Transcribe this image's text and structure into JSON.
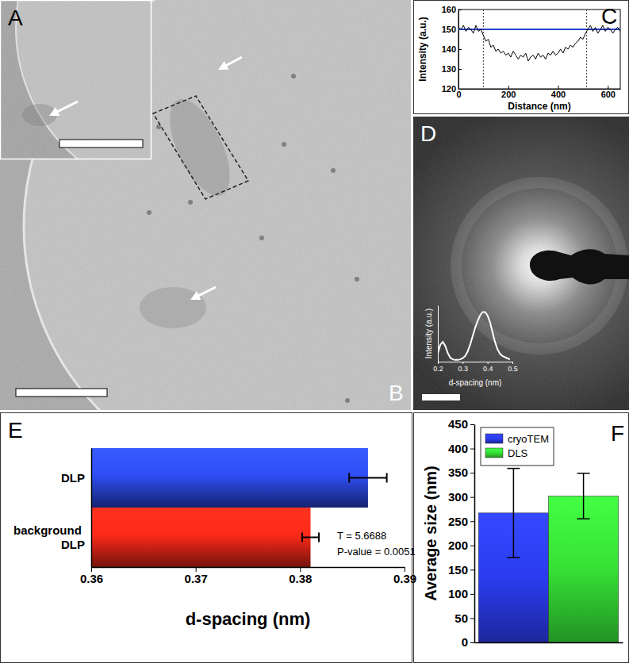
{
  "panels": [
    "A",
    "B",
    "C",
    "D",
    "E",
    "F"
  ],
  "chart_data": [
    {
      "type": "line",
      "xlabel": "Distance (nm)",
      "ylabel": "Intensity (a.u.)",
      "x": [
        0,
        10,
        20,
        30,
        40,
        50,
        60,
        70,
        80,
        90,
        100,
        110,
        120,
        130,
        140,
        150,
        160,
        170,
        180,
        190,
        200,
        210,
        220,
        230,
        240,
        250,
        260,
        270,
        280,
        290,
        300,
        310,
        320,
        330,
        340,
        350,
        360,
        370,
        380,
        390,
        400,
        410,
        420,
        430,
        440,
        450,
        460,
        470,
        480,
        490,
        500,
        510,
        520,
        530,
        540,
        550,
        560,
        570,
        580,
        590,
        600,
        610,
        620,
        630,
        640,
        650
      ],
      "series": [
        {
          "color": "#000000",
          "values": [
            151,
            150,
            152,
            149,
            151,
            150,
            148,
            152,
            149,
            150,
            147,
            144,
            145,
            141,
            142,
            139,
            140,
            138,
            139,
            137,
            138,
            136,
            139,
            137,
            135,
            137,
            136,
            138,
            134,
            136,
            137,
            135,
            138,
            136,
            137,
            135,
            138,
            137,
            139,
            137,
            138,
            140,
            138,
            141,
            140,
            142,
            141,
            143,
            144,
            146,
            145,
            148,
            150,
            152,
            149,
            151,
            148,
            150,
            152,
            149,
            151,
            150,
            148,
            150,
            151,
            149
          ]
        }
      ],
      "hline": 150,
      "vlines": [
        100,
        515
      ],
      "xlim": [
        0,
        650
      ],
      "xticks": [
        0,
        200,
        400,
        600
      ],
      "ylim": [
        120,
        160
      ],
      "yticks": [
        120,
        130,
        140,
        150,
        160
      ]
    },
    {
      "type": "line",
      "xlabel": "d-spacing (nm)",
      "ylabel": "Intensity (a.u.)",
      "x": [
        0.2,
        0.21,
        0.22,
        0.23,
        0.24,
        0.25,
        0.26,
        0.27,
        0.28,
        0.29,
        0.3,
        0.31,
        0.32,
        0.33,
        0.34,
        0.35,
        0.36,
        0.37,
        0.38,
        0.39,
        0.4,
        0.41,
        0.42,
        0.43,
        0.44,
        0.45,
        0.46,
        0.47,
        0.48,
        0.49
      ],
      "series": [
        {
          "color": "#ffffff",
          "values": [
            0.15,
            0.3,
            0.35,
            0.28,
            0.15,
            0.07,
            0.04,
            0.03,
            0.03,
            0.04,
            0.06,
            0.1,
            0.18,
            0.3,
            0.45,
            0.6,
            0.72,
            0.82,
            0.88,
            0.88,
            0.82,
            0.7,
            0.52,
            0.35,
            0.22,
            0.14,
            0.1,
            0.08,
            0.06,
            0.04
          ]
        }
      ],
      "xlim": [
        0.2,
        0.5
      ],
      "xticks": [
        0.2,
        0.3,
        0.4,
        0.5
      ],
      "ylim": [
        0,
        1
      ],
      "tick_labels": "x"
    },
    {
      "type": "bar",
      "orientation": "horizontal",
      "categories": [
        "DLP",
        "background DLP"
      ],
      "values": [
        0.3865,
        0.381
      ],
      "errors": [
        0.0018,
        0.0008
      ],
      "colors": [
        "#2f4df5",
        "#ff2a1a"
      ],
      "xlabel": "d-spacing (nm)",
      "xlim": [
        0.36,
        0.39
      ],
      "xticks": [
        0.36,
        0.37,
        0.38,
        0.39
      ],
      "annotations": [
        "T = 5.6688",
        "P-value = 0.0051"
      ]
    },
    {
      "type": "bar",
      "categories": [
        null
      ],
      "series": [
        {
          "name": "cryoTEM",
          "color": "#2b3cf0",
          "values": [
            267
          ],
          "errors": [
            92
          ]
        },
        {
          "name": "DLS",
          "color": "#36e036",
          "values": [
            302
          ],
          "errors": [
            47
          ]
        }
      ],
      "ylabel": "Average size (nm)",
      "ylim": [
        0,
        450
      ],
      "yticks": [
        0,
        50,
        100,
        150,
        200,
        250,
        300,
        350,
        400,
        450
      ],
      "legend": "top-left"
    }
  ]
}
